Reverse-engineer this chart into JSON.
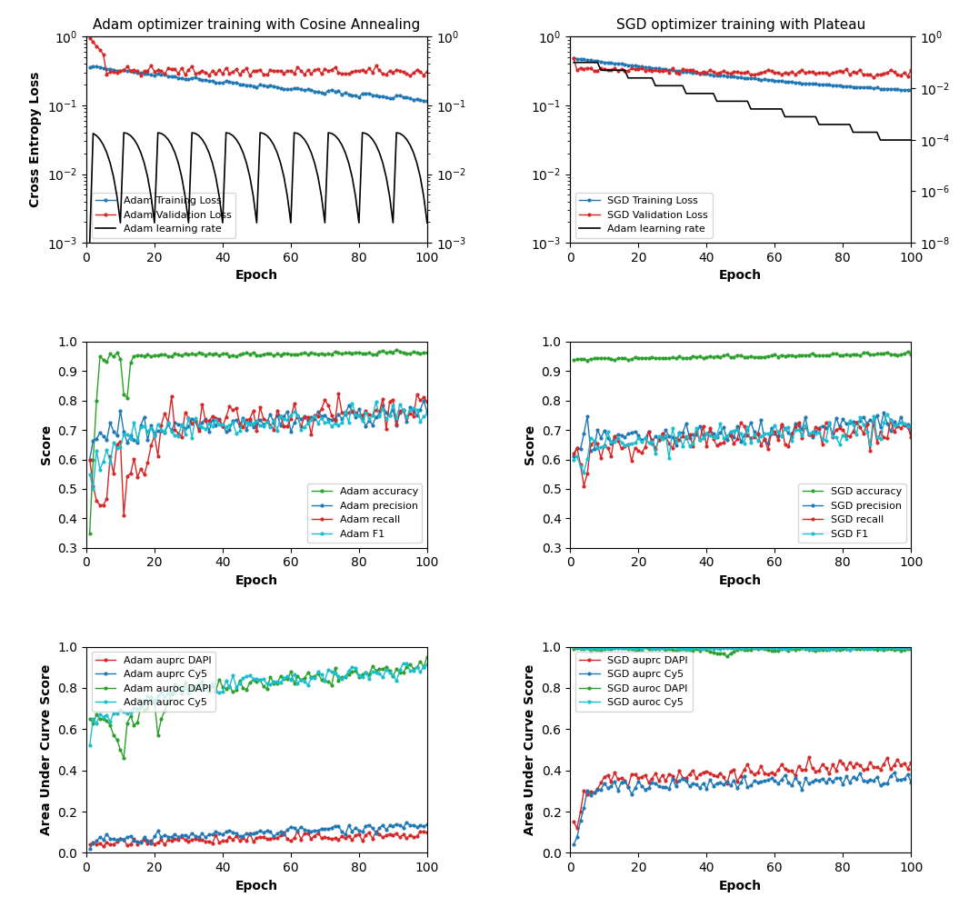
{
  "adam_title": "Adam optimizer training with Cosine Annealing",
  "sgd_title": "SGD optimizer training with Plateau",
  "xlabel": "Epoch",
  "ylabel_loss": "Cross Entropy Loss",
  "ylabel_score": "Score",
  "ylabel_auc": "Area Under Curve Score",
  "epochs": 100,
  "adam_loss_legend": [
    "Adam Training Loss",
    "Adam Validation Loss",
    "Adam learning rate"
  ],
  "adam_metrics_legend": [
    "Adam accuracy",
    "Adam precision",
    "Adam recall",
    "Adam F1"
  ],
  "adam_auc_legend": [
    "Adam auprc DAPI",
    "Adam auprc Cy5",
    "Adam auroc DAPI",
    "Adam auroc Cy5"
  ],
  "sgd_loss_legend": [
    "SGD Training Loss",
    "SGD Validation Loss",
    "Adam learning rate"
  ],
  "sgd_metrics_legend": [
    "SGD accuracy",
    "SGD precision",
    "SGD recall",
    "SGD F1"
  ],
  "sgd_auc_legend": [
    "SGD auprc DAPI",
    "SGD auprc Cy5",
    "SGD auroc DAPI",
    "SGD auroc Cy5"
  ],
  "colors": {
    "blue": "#1f77b4",
    "red": "#d62728",
    "black": "#000000",
    "green": "#2ca02c",
    "cyan": "#17becf"
  }
}
